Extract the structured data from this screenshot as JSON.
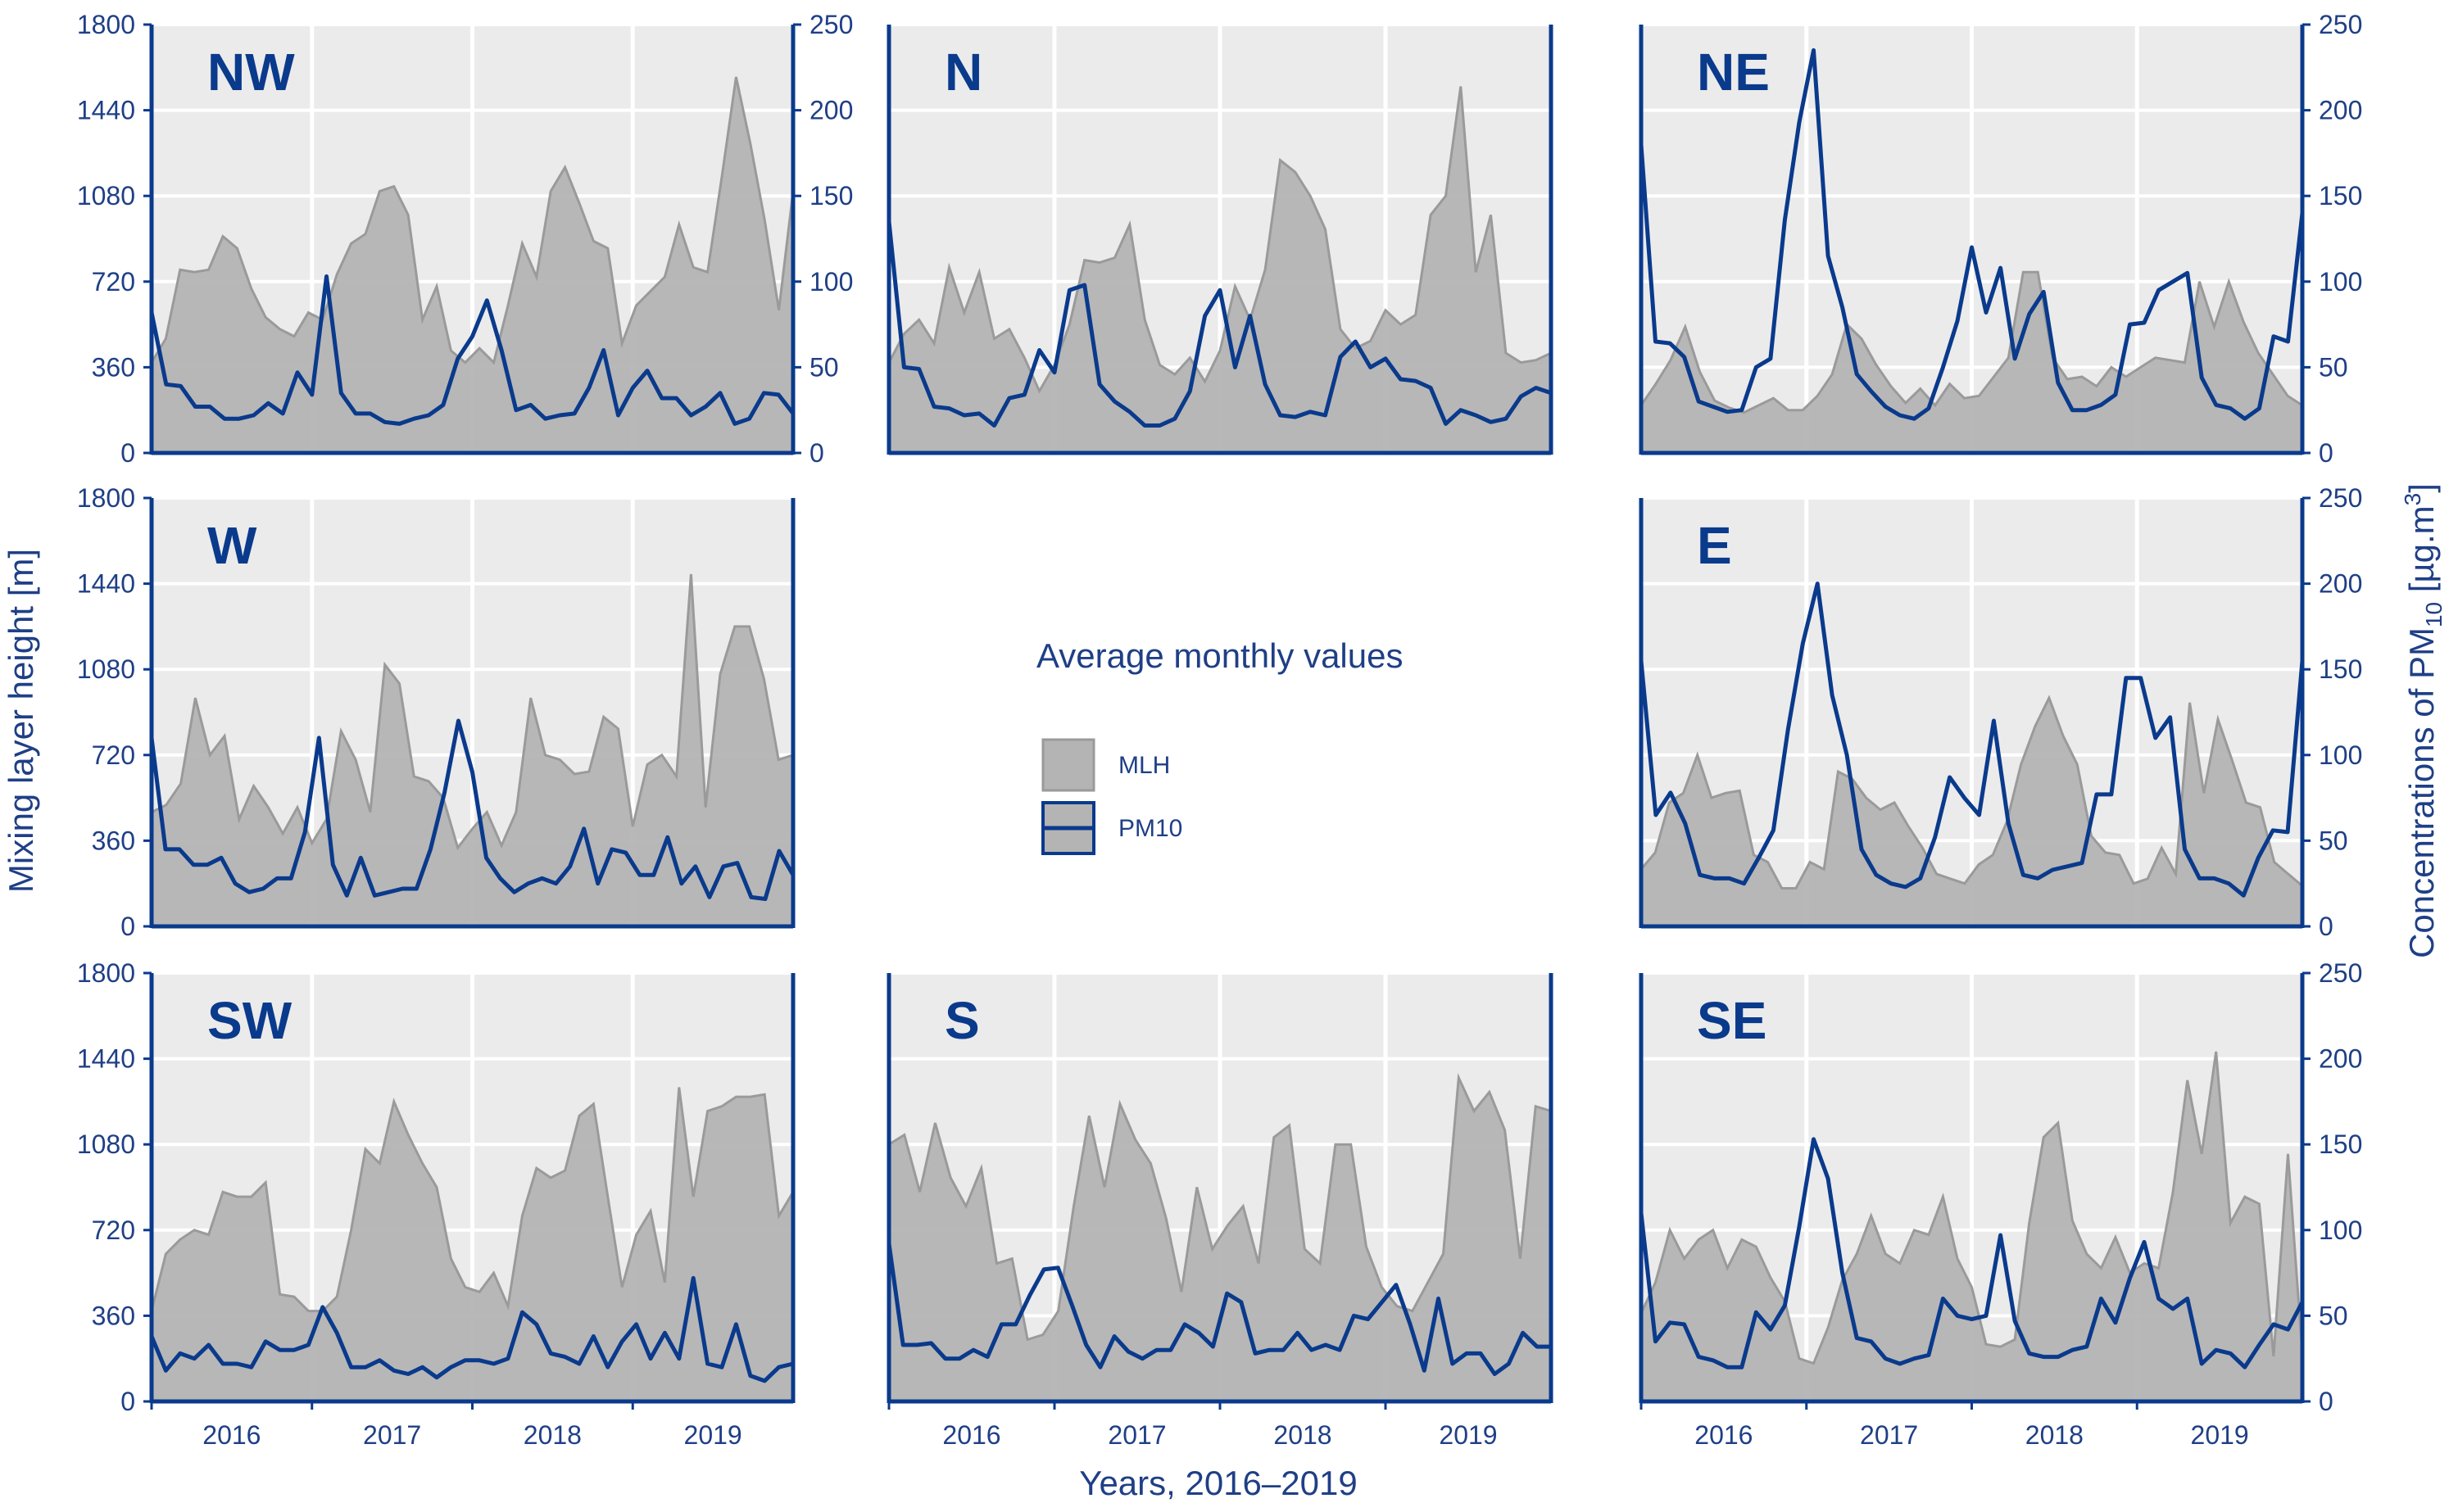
{
  "figure": {
    "y_left_title": "Mixing layer height [m]",
    "y_right_title_parts": [
      "Concentrations of PM",
      "10",
      " [µg.m",
      "3",
      "]"
    ],
    "x_title": "Years, 2016–2019",
    "legend_title": "Average monthly values"
  },
  "colors": {
    "panel_background": "#ebebeb",
    "grid": "#ffffff",
    "mlh_fill": "#b4b4b4",
    "mlh_stroke": "#9a9a9a",
    "pm10_line": "#0a3a8c",
    "axis": "#0a3a8c",
    "text": "#1f3f86"
  },
  "chart_data": [
    {
      "panel": "NW",
      "type": "area",
      "x_tick_labels": [
        "2016",
        "2017",
        "2018",
        "2019"
      ],
      "y_left_ticks": [
        "0",
        "360",
        "720",
        "1080",
        "1440",
        "1800"
      ],
      "y_right_ticks": [
        "0",
        "50",
        "100",
        "150",
        "200",
        "250"
      ],
      "ylim_left": [
        0,
        1800
      ],
      "ylim_right": [
        0,
        250
      ],
      "series": [
        {
          "name": "MLH",
          "axis": "left",
          "values": [
            380,
            480,
            770,
            760,
            770,
            910,
            860,
            690,
            570,
            520,
            490,
            590,
            560,
            750,
            880,
            920,
            1100,
            1120,
            1000,
            560,
            700,
            430,
            380,
            440,
            380,
            620,
            880,
            740,
            1100,
            1200,
            1050,
            890,
            860,
            460,
            620,
            680,
            740,
            960,
            780,
            760,
            1160,
            1580,
            1300,
            980,
            600,
            1100
          ]
        },
        {
          "name": "PM10",
          "axis": "right",
          "values": [
            82,
            40,
            39,
            27,
            27,
            20,
            20,
            22,
            29,
            23,
            47,
            34,
            103,
            35,
            23,
            23,
            18,
            17,
            20,
            22,
            28,
            55,
            68,
            89,
            60,
            25,
            28,
            20,
            22,
            23,
            38,
            60,
            22,
            38,
            48,
            32,
            32,
            22,
            27,
            35,
            17,
            20,
            35,
            34,
            23
          ]
        }
      ]
    },
    {
      "panel": "N",
      "type": "area",
      "x_tick_labels": [
        "2016",
        "2017",
        "2018",
        "2019"
      ],
      "y_left_ticks": [],
      "y_right_ticks": [],
      "ylim_left": [
        0,
        1800
      ],
      "ylim_right": [
        0,
        250
      ],
      "series": [
        {
          "name": "MLH",
          "axis": "left",
          "values": [
            380,
            500,
            560,
            460,
            780,
            590,
            760,
            480,
            520,
            400,
            260,
            370,
            540,
            810,
            800,
            820,
            960,
            560,
            370,
            330,
            400,
            300,
            430,
            700,
            560,
            770,
            1230,
            1180,
            1080,
            940,
            520,
            440,
            470,
            600,
            540,
            580,
            1000,
            1080,
            1540,
            760,
            1000,
            420,
            380,
            390,
            420
          ]
        },
        {
          "name": "PM10",
          "axis": "right",
          "values": [
            135,
            50,
            49,
            27,
            26,
            22,
            23,
            16,
            32,
            34,
            60,
            47,
            95,
            98,
            40,
            30,
            24,
            16,
            16,
            20,
            36,
            80,
            95,
            50,
            80,
            40,
            22,
            21,
            24,
            22,
            56,
            65,
            50,
            55,
            43,
            42,
            38,
            17,
            25,
            22,
            18,
            20,
            33,
            38,
            35
          ]
        }
      ]
    },
    {
      "panel": "NE",
      "type": "area",
      "x_tick_labels": [
        "2016",
        "2017",
        "2018",
        "2019"
      ],
      "y_left_ticks": [],
      "y_right_ticks": [
        "0",
        "50",
        "100",
        "150",
        "200",
        "250"
      ],
      "ylim_left": [
        0,
        1800
      ],
      "ylim_right": [
        0,
        250
      ],
      "series": [
        {
          "name": "MLH",
          "axis": "left",
          "values": [
            200,
            290,
            390,
            530,
            340,
            220,
            190,
            170,
            200,
            230,
            180,
            180,
            240,
            330,
            540,
            480,
            370,
            280,
            210,
            270,
            200,
            290,
            230,
            240,
            320,
            400,
            760,
            760,
            400,
            310,
            320,
            280,
            360,
            320,
            360,
            400,
            390,
            380,
            720,
            530,
            720,
            550,
            420,
            330,
            240,
            200
          ]
        },
        {
          "name": "PM10",
          "axis": "right",
          "values": [
            180,
            65,
            64,
            56,
            30,
            27,
            24,
            25,
            50,
            55,
            136,
            193,
            235,
            115,
            85,
            46,
            36,
            27,
            22,
            20,
            26,
            50,
            77,
            120,
            82,
            108,
            55,
            81,
            94,
            41,
            25,
            25,
            28,
            34,
            75,
            76,
            95,
            100,
            105,
            44,
            28,
            26,
            20,
            26,
            68,
            65,
            140
          ]
        }
      ]
    },
    {
      "panel": "W",
      "type": "area",
      "x_tick_labels": [
        "2016",
        "2017",
        "2018",
        "2019"
      ],
      "y_left_ticks": [
        "0",
        "360",
        "720",
        "1080",
        "1440",
        "1800"
      ],
      "y_right_ticks": [],
      "ylim_left": [
        0,
        1800
      ],
      "ylim_right": [
        0,
        250
      ],
      "series": [
        {
          "name": "MLH",
          "axis": "left",
          "values": [
            480,
            510,
            600,
            960,
            720,
            800,
            450,
            590,
            500,
            390,
            500,
            350,
            450,
            820,
            700,
            480,
            1100,
            1020,
            630,
            610,
            540,
            330,
            410,
            480,
            340,
            480,
            960,
            720,
            700,
            640,
            650,
            880,
            830,
            420,
            680,
            720,
            630,
            1480,
            500,
            1060,
            1260,
            1260,
            1040,
            700,
            720
          ]
        },
        {
          "name": "PM10",
          "axis": "right",
          "values": [
            110,
            45,
            45,
            36,
            36,
            40,
            25,
            20,
            22,
            28,
            28,
            55,
            110,
            36,
            18,
            40,
            18,
            20,
            22,
            22,
            45,
            78,
            120,
            90,
            40,
            28,
            20,
            25,
            28,
            25,
            35,
            57,
            25,
            45,
            43,
            30,
            30,
            52,
            25,
            35,
            17,
            35,
            37,
            17,
            16,
            44,
            30
          ]
        }
      ]
    },
    {
      "panel": "E",
      "type": "area",
      "x_tick_labels": [
        "2016",
        "2017",
        "2018",
        "2019"
      ],
      "y_left_ticks": [],
      "y_right_ticks": [
        "0",
        "50",
        "100",
        "150",
        "200",
        "250"
      ],
      "ylim_left": [
        0,
        1800
      ],
      "ylim_right": [
        0,
        250
      ],
      "series": [
        {
          "name": "MLH",
          "axis": "left",
          "values": [
            240,
            310,
            520,
            560,
            720,
            540,
            560,
            570,
            300,
            270,
            160,
            160,
            270,
            240,
            650,
            620,
            540,
            490,
            520,
            420,
            330,
            220,
            200,
            180,
            260,
            300,
            440,
            680,
            840,
            960,
            800,
            680,
            380,
            310,
            300,
            180,
            200,
            330,
            220,
            940,
            560,
            870,
            700,
            520,
            500,
            270,
            220,
            170
          ]
        },
        {
          "name": "PM10",
          "axis": "right",
          "values": [
            155,
            65,
            78,
            60,
            30,
            28,
            28,
            25,
            40,
            56,
            115,
            165,
            200,
            135,
            100,
            45,
            30,
            25,
            23,
            28,
            52,
            87,
            75,
            65,
            120,
            60,
            30,
            28,
            33,
            35,
            37,
            77,
            77,
            145,
            145,
            110,
            122,
            45,
            28,
            28,
            25,
            18,
            40,
            56,
            55,
            155
          ]
        }
      ]
    },
    {
      "panel": "SW",
      "type": "area",
      "x_tick_labels": [
        "2016",
        "2017",
        "2018",
        "2019"
      ],
      "y_left_ticks": [
        "0",
        "360",
        "720",
        "1080",
        "1440",
        "1800"
      ],
      "y_right_ticks": [],
      "ylim_left": [
        0,
        1800
      ],
      "ylim_right": [
        0,
        250
      ],
      "series": [
        {
          "name": "MLH",
          "axis": "left",
          "values": [
            380,
            620,
            680,
            720,
            700,
            880,
            860,
            860,
            920,
            450,
            440,
            380,
            380,
            440,
            720,
            1060,
            1000,
            1260,
            1120,
            1000,
            900,
            600,
            480,
            460,
            540,
            400,
            780,
            980,
            940,
            970,
            1200,
            1250,
            860,
            480,
            700,
            800,
            500,
            1320,
            860,
            1220,
            1240,
            1280,
            1280,
            1290,
            780,
            880
          ]
        },
        {
          "name": "PM10",
          "axis": "right",
          "values": [
            38,
            18,
            28,
            25,
            33,
            22,
            22,
            20,
            35,
            30,
            30,
            33,
            55,
            40,
            20,
            20,
            24,
            18,
            16,
            20,
            14,
            20,
            24,
            24,
            22,
            25,
            52,
            45,
            28,
            26,
            22,
            38,
            20,
            35,
            45,
            25,
            40,
            25,
            72,
            22,
            20,
            45,
            15,
            12,
            20,
            22
          ]
        }
      ]
    },
    {
      "panel": "S",
      "type": "area",
      "x_tick_labels": [
        "2016",
        "2017",
        "2018",
        "2019"
      ],
      "y_left_ticks": [],
      "y_right_ticks": [],
      "ylim_left": [
        0,
        1800
      ],
      "ylim_right": [
        0,
        250
      ],
      "series": [
        {
          "name": "MLH",
          "axis": "left",
          "values": [
            1080,
            1120,
            880,
            1170,
            940,
            820,
            980,
            580,
            600,
            260,
            280,
            380,
            820,
            1200,
            900,
            1250,
            1100,
            1000,
            770,
            460,
            900,
            640,
            740,
            820,
            580,
            1110,
            1160,
            640,
            580,
            1080,
            1080,
            650,
            480,
            400,
            380,
            500,
            620,
            1360,
            1220,
            1300,
            1140,
            600,
            1240,
            1220
          ]
        },
        {
          "name": "PM10",
          "axis": "right",
          "values": [
            92,
            33,
            33,
            34,
            25,
            25,
            30,
            26,
            45,
            45,
            62,
            77,
            78,
            56,
            33,
            20,
            38,
            29,
            25,
            30,
            30,
            45,
            40,
            32,
            63,
            58,
            28,
            30,
            30,
            40,
            30,
            33,
            30,
            50,
            48,
            58,
            68,
            45,
            18,
            60,
            22,
            28,
            28,
            16,
            22,
            40,
            32,
            32
          ]
        }
      ]
    },
    {
      "panel": "SE",
      "type": "area",
      "x_tick_labels": [
        "2016",
        "2017",
        "2018",
        "2019"
      ],
      "y_left_ticks": [],
      "y_right_ticks": [
        "0",
        "50",
        "100",
        "150",
        "200",
        "250"
      ],
      "ylim_left": [
        0,
        1800
      ],
      "ylim_right": [
        0,
        250
      ],
      "series": [
        {
          "name": "MLH",
          "axis": "left",
          "values": [
            370,
            500,
            720,
            600,
            680,
            720,
            560,
            680,
            650,
            520,
            420,
            180,
            160,
            310,
            510,
            620,
            780,
            620,
            580,
            720,
            700,
            860,
            600,
            480,
            240,
            230,
            260,
            750,
            1110,
            1170,
            760,
            620,
            560,
            690,
            540,
            580,
            560,
            880,
            1350,
            1040,
            1470,
            750,
            860,
            830,
            190,
            1040,
            200
          ]
        },
        {
          "name": "PM10",
          "axis": "right",
          "values": [
            110,
            35,
            46,
            45,
            26,
            24,
            20,
            20,
            52,
            42,
            56,
            102,
            153,
            130,
            75,
            37,
            35,
            25,
            22,
            25,
            27,
            60,
            50,
            48,
            50,
            97,
            47,
            28,
            26,
            26,
            30,
            32,
            60,
            46,
            72,
            93,
            60,
            54,
            60,
            22,
            30,
            28,
            20,
            33,
            45,
            42,
            58
          ]
        }
      ]
    }
  ],
  "legend": {
    "items": [
      {
        "label": "MLH",
        "kind": "area"
      },
      {
        "label": "PM10",
        "kind": "line"
      }
    ]
  }
}
